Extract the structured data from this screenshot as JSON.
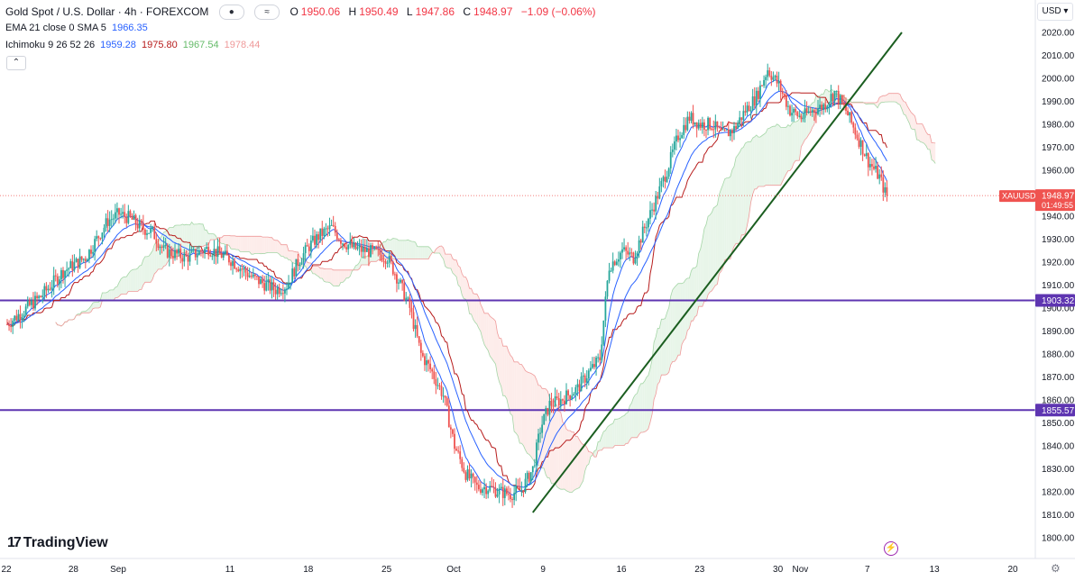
{
  "header": {
    "symbol_title": "Gold Spot / U.S. Dollar · 4h · FOREXCOM",
    "icon_label": "≈",
    "ohlc": [
      {
        "label": "O",
        "value": "1950.06"
      },
      {
        "label": "H",
        "value": "1950.49"
      },
      {
        "label": "L",
        "value": "1947.86"
      },
      {
        "label": "C",
        "value": "1948.97"
      },
      {
        "label": "",
        "value": "−1.09 (−0.06%)"
      }
    ]
  },
  "indicators": {
    "ema_label": "EMA 21 close 0 SMA 5",
    "ema_value": "1966.35",
    "ichimoku_label": "Ichimoku 9 26 52 26",
    "ichimoku_values": [
      "1959.28",
      "1975.80",
      "1967.54",
      "1978.44"
    ]
  },
  "currency": "USD",
  "branding": "TradingView",
  "colors": {
    "up": "#26a69a",
    "down": "#ef5350",
    "ema": "#2962ff",
    "kijun": "#b71c1c",
    "cloud_bull": "#e8f5e9",
    "cloud_bear": "#fdecea",
    "hline": "#5e35b1",
    "trend": "#1b5e20",
    "price_tag": "#ef5350",
    "ema_value": "#2962ff",
    "tenkan_value": "#2962ff",
    "kijun_value": "#b71c1c",
    "span_a_value": "#66bb6a",
    "span_b_value": "#ef9a9a"
  },
  "chart_data": {
    "type": "candlestick",
    "ylim": [
      1795,
      2025
    ],
    "y_ticks": [
      1800,
      1810,
      1820,
      1830,
      1840,
      1850,
      1860,
      1870,
      1880,
      1890,
      1900,
      1910,
      1920,
      1930,
      1940,
      1950,
      1960,
      1970,
      1980,
      1990,
      2000,
      2010,
      2020
    ],
    "x_ticks": [
      {
        "label": "22",
        "x": 0
      },
      {
        "label": "28",
        "x": 6
      },
      {
        "label": "Sep",
        "x": 10
      },
      {
        "label": "11",
        "x": 20
      },
      {
        "label": "18",
        "x": 27
      },
      {
        "label": "25",
        "x": 34
      },
      {
        "label": "Oct",
        "x": 40
      },
      {
        "label": "9",
        "x": 48
      },
      {
        "label": "16",
        "x": 55
      },
      {
        "label": "23",
        "x": 62
      },
      {
        "label": "30",
        "x": 69
      },
      {
        "label": "Nov",
        "x": 71
      },
      {
        "label": "7",
        "x": 77
      },
      {
        "label": "13",
        "x": 83
      },
      {
        "label": "20",
        "x": 90
      }
    ],
    "price_anchors": [
      [
        0,
        1893
      ],
      [
        1,
        1897
      ],
      [
        3,
        1905
      ],
      [
        5,
        1916
      ],
      [
        7,
        1922
      ],
      [
        8,
        1930
      ],
      [
        9,
        1938
      ],
      [
        10,
        1941
      ],
      [
        11,
        1939
      ],
      [
        12,
        1935
      ],
      [
        13,
        1933
      ],
      [
        14,
        1925
      ],
      [
        16,
        1922
      ],
      [
        18,
        1926
      ],
      [
        20,
        1921
      ],
      [
        22,
        1913
      ],
      [
        24,
        1908
      ],
      [
        25,
        1910
      ],
      [
        26,
        1920
      ],
      [
        27,
        1927
      ],
      [
        28,
        1932
      ],
      [
        29,
        1935
      ],
      [
        30,
        1929
      ],
      [
        31,
        1926
      ],
      [
        32,
        1925
      ],
      [
        33,
        1924
      ],
      [
        34,
        1922
      ],
      [
        35,
        1912
      ],
      [
        36,
        1900
      ],
      [
        37,
        1880
      ],
      [
        38,
        1872
      ],
      [
        39,
        1862
      ],
      [
        40,
        1840
      ],
      [
        41,
        1828
      ],
      [
        42,
        1822
      ],
      [
        43,
        1822
      ],
      [
        44,
        1820
      ],
      [
        45,
        1819
      ],
      [
        46,
        1821
      ],
      [
        47,
        1830
      ],
      [
        47.7,
        1848
      ],
      [
        48.5,
        1858
      ],
      [
        49.5,
        1860
      ],
      [
        51,
        1865
      ],
      [
        52,
        1872
      ],
      [
        53,
        1878
      ],
      [
        53.8,
        1918
      ],
      [
        55,
        1925
      ],
      [
        56,
        1922
      ],
      [
        57,
        1935
      ],
      [
        58,
        1947
      ],
      [
        59,
        1960
      ],
      [
        60,
        1975
      ],
      [
        61,
        1983
      ],
      [
        62,
        1980
      ],
      [
        63,
        1980
      ],
      [
        64,
        1975
      ],
      [
        65,
        1978
      ],
      [
        66,
        1986
      ],
      [
        67,
        1992
      ],
      [
        68,
        2004
      ],
      [
        69,
        1997
      ],
      [
        70,
        1986
      ],
      [
        71,
        1983
      ],
      [
        72,
        1986
      ],
      [
        73,
        1988
      ],
      [
        74,
        1994
      ],
      [
        75,
        1986
      ],
      [
        76,
        1975
      ],
      [
        77,
        1964
      ],
      [
        78,
        1957
      ],
      [
        78.6,
        1949
      ]
    ],
    "series": [
      {
        "name": "EMA 21 close 0 SMA 5",
        "color": "#2962ff"
      },
      {
        "name": "Ichimoku 9 26 52 26"
      }
    ],
    "horizontal_lines": [
      {
        "value": 1903.32,
        "label": "1903.32",
        "color": "#5e35b1"
      },
      {
        "value": 1855.57,
        "label": "1855.57",
        "color": "#5e35b1"
      }
    ],
    "trend_line": {
      "from": [
        47,
        1811
      ],
      "to": [
        80,
        2020
      ],
      "color": "#1b5e20"
    },
    "last_price": {
      "value": 1948.97,
      "label": "1948.97",
      "symbol": "XAUUSD",
      "countdown": "01:49:55"
    }
  }
}
